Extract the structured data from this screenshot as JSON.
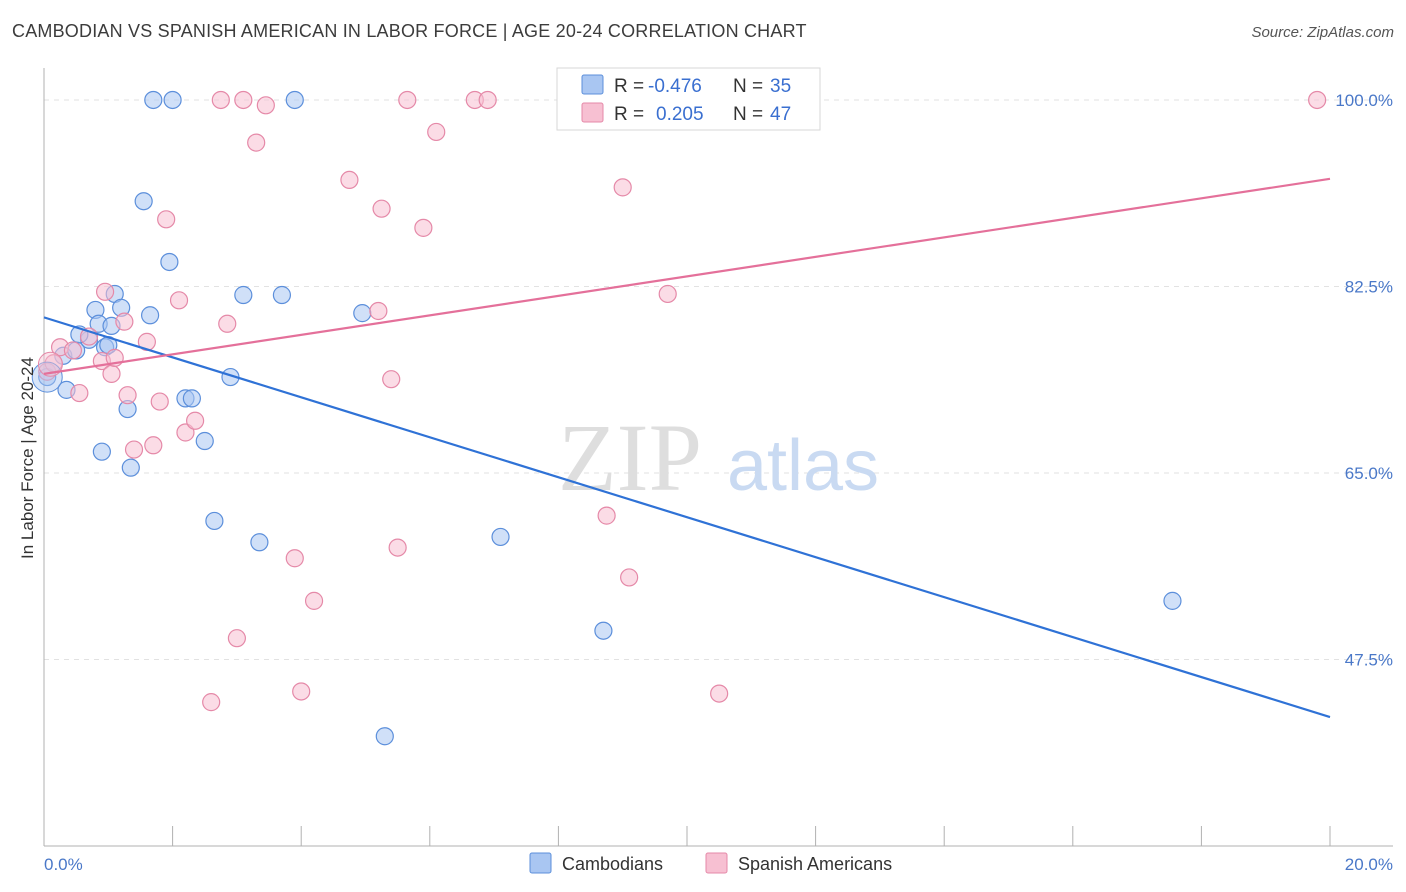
{
  "header": {
    "title": "CAMBODIAN VS SPANISH AMERICAN IN LABOR FORCE | AGE 20-24 CORRELATION CHART",
    "source": "Source: ZipAtlas.com"
  },
  "watermark": {
    "zip": "ZIP",
    "atlas": "atlas"
  },
  "legend": {
    "rows": [
      {
        "r_label": "R =",
        "r_value": "-0.476",
        "n_label": "N =",
        "n_value": "35",
        "color": "#8fb4f0"
      },
      {
        "r_label": "R =",
        "r_value": "0.205",
        "n_label": "N =",
        "n_value": "47",
        "color": "#f5a9c2"
      }
    ]
  },
  "bottom_legend": {
    "items": [
      {
        "label": "Cambodians",
        "color": "#8fb4f0"
      },
      {
        "label": "Spanish Americans",
        "color": "#f5a9c2"
      }
    ]
  },
  "colors": {
    "blue_fill": "#a9c6f2",
    "blue_stroke": "#5c8fdb",
    "blue_line": "#2f72d6",
    "pink_fill": "#f7c0d2",
    "pink_stroke": "#e589a8",
    "pink_line": "#e4709a",
    "grid": "#e2e2e2",
    "axis": "#b0b0b0",
    "tick_text": "#4a78c8"
  },
  "chart_data": {
    "type": "scatter",
    "title": "CAMBODIAN VS SPANISH AMERICAN IN LABOR FORCE | AGE 20-24 CORRELATION CHART",
    "xlabel": "",
    "ylabel": "In Labor Force | Age 20-24",
    "xlim": [
      0,
      20
    ],
    "ylim": [
      30,
      103
    ],
    "x_tick_labels": [
      {
        "value": 0,
        "label": "0.0%"
      },
      {
        "value": 20,
        "label": "20.0%"
      }
    ],
    "y_tick_labels": [
      {
        "value": 100,
        "label": "100.0%"
      },
      {
        "value": 82.5,
        "label": "82.5%"
      },
      {
        "value": 65,
        "label": "65.0%"
      },
      {
        "value": 47.5,
        "label": "47.5%"
      }
    ],
    "grid": true,
    "legend_position": "top-center",
    "series": [
      {
        "name": "Cambodians",
        "points": [
          [
            0.05,
            74.0
          ],
          [
            0.3,
            76.0
          ],
          [
            0.35,
            72.8
          ],
          [
            0.5,
            76.5
          ],
          [
            0.7,
            77.5
          ],
          [
            0.8,
            80.3
          ],
          [
            0.85,
            79.0
          ],
          [
            0.95,
            76.8
          ],
          [
            1.05,
            78.8
          ],
          [
            1.1,
            81.8
          ],
          [
            1.2,
            80.5
          ],
          [
            0.9,
            67.0
          ],
          [
            1.3,
            71.0
          ],
          [
            1.35,
            65.5
          ],
          [
            1.55,
            90.5
          ],
          [
            1.65,
            79.8
          ],
          [
            1.7,
            100.0
          ],
          [
            2.0,
            100.0
          ],
          [
            1.95,
            84.8
          ],
          [
            2.2,
            72.0
          ],
          [
            2.3,
            72.0
          ],
          [
            2.5,
            68.0
          ],
          [
            2.65,
            60.5
          ],
          [
            2.9,
            74.0
          ],
          [
            3.1,
            81.7
          ],
          [
            3.35,
            58.5
          ],
          [
            3.7,
            81.7
          ],
          [
            3.9,
            100.0
          ],
          [
            4.95,
            80.0
          ],
          [
            7.1,
            59.0
          ],
          [
            8.7,
            50.2
          ],
          [
            5.3,
            40.3
          ],
          [
            17.55,
            53.0
          ],
          [
            0.55,
            78.0
          ],
          [
            1.0,
            77.0
          ]
        ],
        "trend": {
          "x": [
            0,
            20
          ],
          "y": [
            79.6,
            42.1
          ]
        }
      },
      {
        "name": "Spanish Americans",
        "points": [
          [
            0.05,
            74.5
          ],
          [
            0.25,
            76.8
          ],
          [
            0.45,
            76.5
          ],
          [
            0.55,
            72.5
          ],
          [
            0.7,
            77.8
          ],
          [
            0.9,
            75.5
          ],
          [
            0.95,
            82.0
          ],
          [
            1.05,
            74.3
          ],
          [
            1.1,
            75.8
          ],
          [
            1.25,
            79.2
          ],
          [
            1.3,
            72.3
          ],
          [
            1.4,
            67.2
          ],
          [
            1.6,
            77.3
          ],
          [
            1.7,
            67.6
          ],
          [
            1.8,
            71.7
          ],
          [
            1.9,
            88.8
          ],
          [
            2.1,
            81.2
          ],
          [
            2.2,
            68.8
          ],
          [
            2.35,
            69.9
          ],
          [
            2.6,
            43.5
          ],
          [
            2.75,
            100.0
          ],
          [
            2.85,
            79.0
          ],
          [
            3.0,
            49.5
          ],
          [
            3.1,
            100.0
          ],
          [
            3.3,
            96.0
          ],
          [
            3.45,
            99.5
          ],
          [
            3.9,
            57.0
          ],
          [
            4.0,
            44.5
          ],
          [
            4.2,
            53.0
          ],
          [
            4.75,
            92.5
          ],
          [
            5.2,
            80.2
          ],
          [
            5.25,
            89.8
          ],
          [
            5.4,
            73.8
          ],
          [
            5.5,
            58.0
          ],
          [
            5.65,
            100.0
          ],
          [
            5.9,
            88.0
          ],
          [
            6.1,
            97.0
          ],
          [
            6.7,
            100.0
          ],
          [
            6.9,
            100.0
          ],
          [
            8.75,
            61.0
          ],
          [
            9.0,
            91.8
          ],
          [
            9.1,
            55.2
          ],
          [
            9.7,
            81.8
          ],
          [
            9.85,
            100.0
          ],
          [
            10.5,
            44.3
          ],
          [
            19.8,
            100.0
          ],
          [
            0.15,
            75.3
          ]
        ],
        "trend": {
          "x": [
            0,
            20
          ],
          "y": [
            74.3,
            92.6
          ]
        }
      }
    ]
  }
}
